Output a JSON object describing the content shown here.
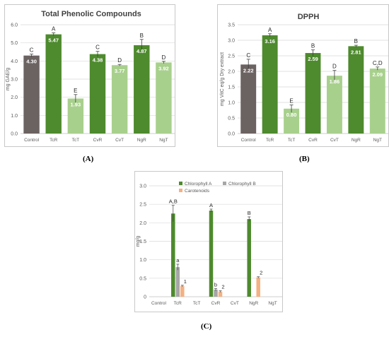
{
  "captions": {
    "a": "(A)",
    "b": "(B)",
    "c": "(C)"
  },
  "colors": {
    "control": "#6b6262",
    "root": "#4e8a2e",
    "treated": "#a8d08d",
    "chlA": "#4e8a2e",
    "chlB": "#a6a6a6",
    "carot": "#f4b183",
    "grid": "#d9d9d9",
    "axis_text": "#595959",
    "error_bar": "#404040"
  },
  "chart_data": [
    {
      "type": "bar",
      "title": "Total Phenolic Compounds",
      "ylabel": "mg GAE/g",
      "xlabel": "",
      "categories": [
        "Control",
        "TcR",
        "TcT",
        "CvR",
        "CvT",
        "NgR",
        "NgT"
      ],
      "values": [
        4.3,
        5.47,
        1.93,
        4.38,
        3.77,
        4.87,
        3.92
      ],
      "value_labels": [
        "4.30",
        "5.47",
        "1.93",
        "4.38",
        "3.77",
        "4.87",
        "3.92"
      ],
      "errors": [
        0.08,
        0.08,
        0.22,
        0.15,
        0.04,
        0.32,
        0.06
      ],
      "letters": [
        "C",
        "A",
        "E",
        "C",
        "D",
        "B",
        "D"
      ],
      "groups": [
        "control",
        "root",
        "treated",
        "root",
        "treated",
        "root",
        "treated"
      ],
      "ylim": [
        0,
        6
      ],
      "yticks": [
        "0.0",
        "1.0",
        "2.0",
        "3.0",
        "4.0",
        "5.0",
        "6.0"
      ],
      "grid": true,
      "legend": "none"
    },
    {
      "type": "bar",
      "title": "DPPH",
      "ylabel": "mg VitC eq/g Dry extract",
      "xlabel": "",
      "categories": [
        "Control",
        "TcR",
        "TcT",
        "CvR",
        "CvT",
        "NgR",
        "NgT"
      ],
      "values": [
        2.22,
        3.16,
        0.8,
        2.59,
        1.86,
        2.81,
        2.09
      ],
      "value_labels": [
        "2.22",
        "3.16",
        "0.80",
        "2.59",
        "1.86",
        "2.81",
        "2.09"
      ],
      "errors": [
        0.17,
        0.05,
        0.12,
        0.1,
        0.17,
        0.03,
        0.05
      ],
      "letters": [
        "C",
        "A",
        "E",
        "B",
        "D",
        "B",
        "C,D"
      ],
      "groups": [
        "control",
        "root",
        "treated",
        "root",
        "treated",
        "root",
        "treated"
      ],
      "ylim": [
        0,
        3.5
      ],
      "yticks": [
        "0.0",
        "0.5",
        "1.0",
        "1.5",
        "2.0",
        "2.5",
        "3.0",
        "3.5"
      ],
      "grid": true,
      "legend": "none"
    },
    {
      "type": "bar",
      "title": "",
      "ylabel": "mg/g",
      "xlabel": "",
      "categories": [
        "Control",
        "TcR",
        "TcT",
        "CvR",
        "CvT",
        "NgR",
        "NgT"
      ],
      "series": [
        {
          "name": "Chlorophyll A",
          "values": [
            0,
            2.25,
            0,
            2.33,
            0,
            2.1,
            0
          ],
          "errors": [
            0,
            0.22,
            0,
            0.04,
            0,
            0.06,
            0
          ],
          "letters": [
            "",
            "A,B",
            "",
            "A",
            "",
            "B",
            ""
          ]
        },
        {
          "name": "Chlorophyll B",
          "values": [
            0,
            0.8,
            0,
            0.19,
            0,
            0,
            0
          ],
          "errors": [
            0,
            0.08,
            0,
            0.03,
            0,
            0,
            0
          ],
          "letters": [
            "",
            "a",
            "",
            "b",
            "",
            "",
            ""
          ]
        },
        {
          "name": "Carotenoids",
          "values": [
            0,
            0.29,
            0,
            0.14,
            0,
            0.52,
            0
          ],
          "errors": [
            0,
            0.02,
            0,
            0.02,
            0,
            0.02,
            0
          ],
          "letters": [
            "",
            "1",
            "",
            "2",
            "",
            "2",
            ""
          ]
        }
      ],
      "ylim": [
        0,
        3
      ],
      "yticks": [
        "0",
        "0.5",
        "1.0",
        "1.5",
        "2.0",
        "2.5",
        "3.0"
      ],
      "grid": true,
      "legend": "top-right"
    }
  ]
}
